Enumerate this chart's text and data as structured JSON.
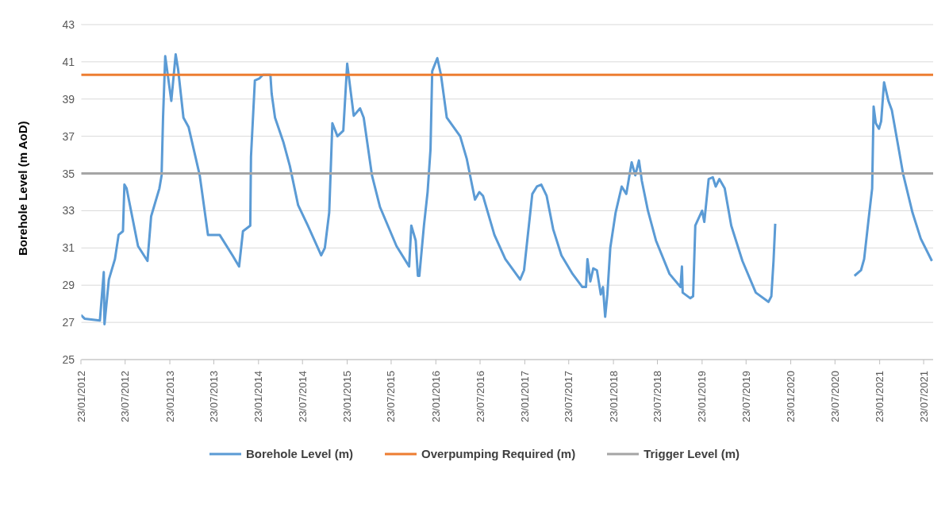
{
  "chart_data": {
    "type": "line",
    "ylabel": "Borehole Level (m AoD)",
    "x": [
      "2012-01-23",
      "2012-02-07",
      "2012-04-10",
      "2012-04-26",
      "2012-04-29",
      "2012-05-17",
      "2012-06-11",
      "2012-06-26",
      "2012-07-14",
      "2012-07-20",
      "2012-07-29",
      "2012-09-14",
      "2012-10-23",
      "2012-11-07",
      "2012-12-11",
      "2012-12-20",
      "2012-12-26",
      "2013-01-04",
      "2013-01-29",
      "2013-02-16",
      "2013-02-26",
      "2013-03-20",
      "2013-04-10",
      "2013-05-26",
      "2013-06-29",
      "2013-08-16",
      "2013-10-08",
      "2013-11-04",
      "2013-11-20",
      "2013-12-20",
      "2013-12-23",
      "2014-01-08",
      "2014-01-26",
      "2014-02-10",
      "2014-03-13",
      "2014-03-18",
      "2014-04-01",
      "2014-05-05",
      "2014-06-01",
      "2014-07-05",
      "2014-08-14",
      "2014-10-08",
      "2014-10-23",
      "2014-11-10",
      "2014-11-23",
      "2014-12-14",
      "2015-01-07",
      "2015-01-23",
      "2015-02-19",
      "2015-03-17",
      "2015-04-01",
      "2015-05-05",
      "2015-06-07",
      "2015-08-14",
      "2015-10-05",
      "2015-10-14",
      "2015-11-01",
      "2015-11-10",
      "2015-11-16",
      "2015-12-05",
      "2015-12-20",
      "2016-01-01",
      "2016-01-08",
      "2016-01-29",
      "2016-02-13",
      "2016-03-08",
      "2016-05-02",
      "2016-05-29",
      "2016-07-02",
      "2016-07-20",
      "2016-08-04",
      "2016-09-20",
      "2016-11-04",
      "2017-01-04",
      "2017-01-20",
      "2017-02-23",
      "2017-03-14",
      "2017-04-01",
      "2017-04-23",
      "2017-05-20",
      "2017-06-23",
      "2017-08-08",
      "2017-09-17",
      "2017-10-02",
      "2017-10-08",
      "2017-10-20",
      "2017-11-01",
      "2017-11-16",
      "2017-12-02",
      "2017-12-11",
      "2017-12-20",
      "2017-12-29",
      "2018-01-10",
      "2018-02-01",
      "2018-02-26",
      "2018-03-17",
      "2018-04-08",
      "2018-04-23",
      "2018-05-08",
      "2018-05-20",
      "2018-06-14",
      "2018-07-17",
      "2018-09-11",
      "2018-10-26",
      "2018-11-01",
      "2018-11-04",
      "2018-12-05",
      "2018-12-17",
      "2018-12-26",
      "2019-01-23",
      "2019-02-01",
      "2019-02-19",
      "2019-03-08",
      "2019-03-20",
      "2019-04-04",
      "2019-04-26",
      "2019-05-23",
      "2019-07-08",
      "2019-09-01",
      "2019-10-23",
      "2019-11-04",
      "2019-11-13",
      "2019-11-20",
      "2020-03-01",
      "2020-10-11",
      "2020-11-07",
      "2020-11-20",
      "2020-12-08",
      "2020-12-23",
      "2020-12-29",
      "2021-01-07",
      "2021-01-20",
      "2021-01-29",
      "2021-02-10",
      "2021-02-28",
      "2021-03-14",
      "2021-04-13",
      "2021-04-29",
      "2021-06-07",
      "2021-07-11",
      "2021-08-26"
    ],
    "series": [
      {
        "name": "Borehole Level (m)",
        "color": "#5b9bd5",
        "values": [
          27.4,
          27.2,
          27.1,
          29.7,
          26.9,
          29.3,
          30.4,
          31.7,
          31.9,
          34.4,
          34.2,
          31.1,
          30.3,
          32.7,
          34.2,
          34.9,
          38.0,
          41.3,
          38.9,
          41.4,
          40.6,
          38.0,
          37.5,
          34.9,
          31.7,
          31.7,
          30.6,
          30.0,
          31.9,
          32.2,
          35.9,
          40.0,
          40.1,
          40.3,
          40.3,
          39.3,
          38.0,
          36.7,
          35.4,
          33.3,
          32.2,
          30.6,
          31.0,
          32.9,
          37.7,
          37.0,
          37.3,
          40.9,
          38.1,
          38.5,
          38.0,
          34.9,
          33.2,
          31.1,
          30.0,
          32.2,
          31.4,
          29.5,
          29.5,
          32.2,
          34.0,
          36.3,
          40.5,
          41.2,
          40.3,
          38.0,
          37.0,
          35.8,
          33.6,
          34.0,
          33.8,
          31.7,
          30.4,
          29.3,
          29.8,
          33.9,
          34.3,
          34.4,
          33.8,
          32.0,
          30.6,
          29.6,
          28.9,
          28.9,
          30.4,
          29.2,
          29.9,
          29.8,
          28.5,
          28.9,
          27.3,
          28.5,
          31.0,
          32.9,
          34.3,
          33.9,
          35.6,
          34.9,
          35.7,
          34.6,
          33.0,
          31.4,
          29.6,
          28.9,
          30.0,
          28.6,
          28.3,
          28.4,
          32.2,
          33.0,
          32.4,
          34.7,
          34.8,
          34.3,
          34.7,
          34.2,
          32.2,
          30.3,
          28.6,
          28.1,
          28.4,
          30.3,
          32.3,
          null,
          29.5,
          29.8,
          30.4,
          32.5,
          34.2,
          38.6,
          37.7,
          37.4,
          37.8,
          39.9,
          38.9,
          38.4,
          36.2,
          35.0,
          32.9,
          31.5,
          30.3
        ]
      },
      {
        "name": "Overpumping Required (m)",
        "color": "#ed7d31",
        "x": [
          "2012-01-23",
          "2021-08-31"
        ],
        "values": [
          40.3,
          40.3
        ]
      },
      {
        "name": "Trigger Level (m)",
        "color": "#a5a5a5",
        "x": [
          "2012-01-23",
          "2021-08-31"
        ],
        "values": [
          35.0,
          35.0
        ]
      }
    ],
    "xlim": [
      "2012-01-23",
      "2021-08-31"
    ],
    "xticks": [
      {
        "value": "2012-01-23",
        "label": "23/01/2012"
      },
      {
        "value": "2012-07-23",
        "label": "23/07/2012"
      },
      {
        "value": "2013-01-23",
        "label": "23/01/2013"
      },
      {
        "value": "2013-07-23",
        "label": "23/07/2013"
      },
      {
        "value": "2014-01-23",
        "label": "23/01/2014"
      },
      {
        "value": "2014-07-23",
        "label": "23/07/2014"
      },
      {
        "value": "2015-01-23",
        "label": "23/01/2015"
      },
      {
        "value": "2015-07-23",
        "label": "23/07/2015"
      },
      {
        "value": "2016-01-23",
        "label": "23/01/2016"
      },
      {
        "value": "2016-07-23",
        "label": "23/07/2016"
      },
      {
        "value": "2017-01-23",
        "label": "23/01/2017"
      },
      {
        "value": "2017-07-23",
        "label": "23/07/2017"
      },
      {
        "value": "2018-01-23",
        "label": "23/01/2018"
      },
      {
        "value": "2018-07-23",
        "label": "23/07/2018"
      },
      {
        "value": "2019-01-23",
        "label": "23/01/2019"
      },
      {
        "value": "2019-07-23",
        "label": "23/07/2019"
      },
      {
        "value": "2020-01-23",
        "label": "23/01/2020"
      },
      {
        "value": "2020-07-23",
        "label": "23/07/2020"
      },
      {
        "value": "2021-01-23",
        "label": "23/01/2021"
      },
      {
        "value": "2021-07-23",
        "label": "23/07/2021"
      }
    ],
    "ylim": [
      25,
      43
    ],
    "yticks": [
      25,
      27,
      29,
      31,
      33,
      35,
      37,
      39,
      41,
      43
    ],
    "grid": "y",
    "legend": "bottom",
    "marker": "none",
    "line_style": "solid"
  }
}
